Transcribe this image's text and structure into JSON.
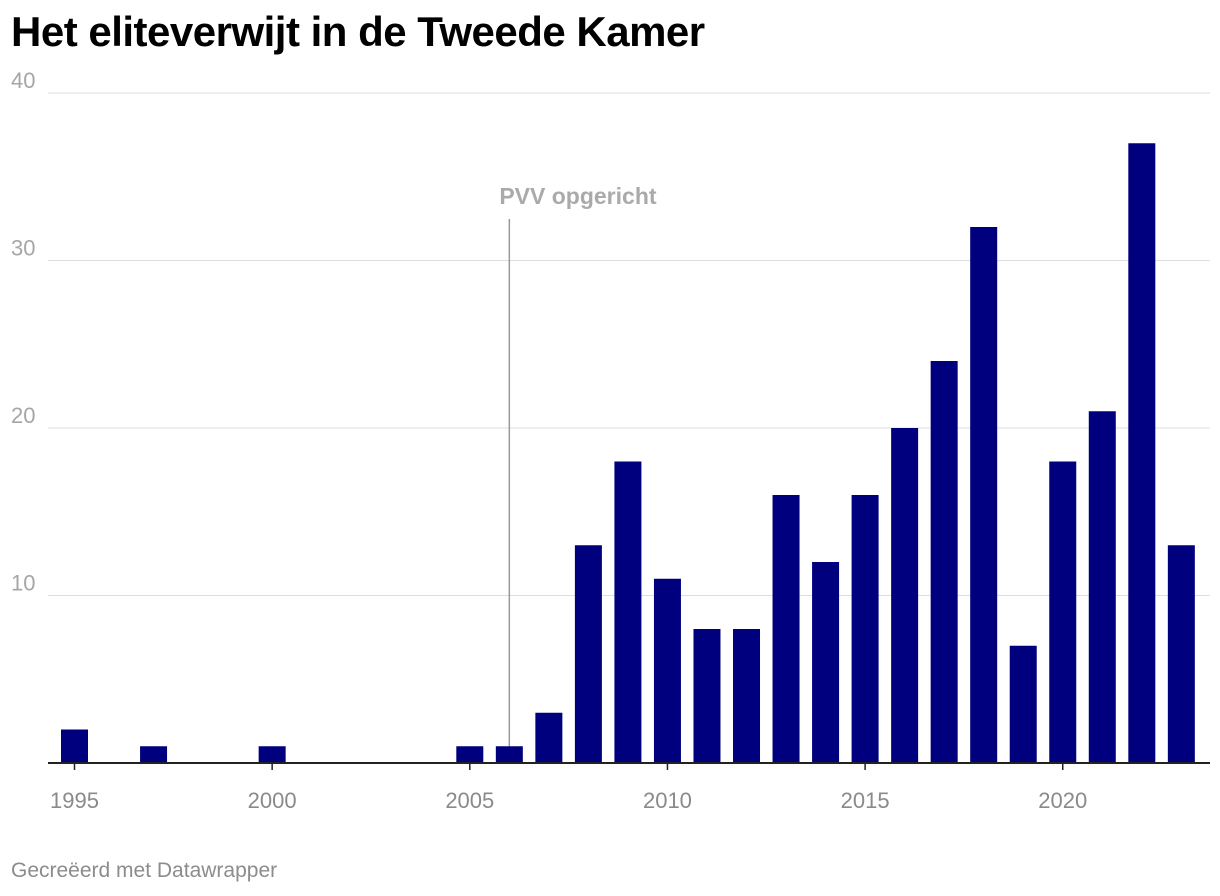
{
  "chart_data": {
    "type": "bar",
    "title": "Het eliteverwijt in de Tweede Kamer",
    "x": [
      1995,
      1996,
      1997,
      1998,
      1999,
      2000,
      2001,
      2002,
      2003,
      2004,
      2005,
      2006,
      2007,
      2008,
      2009,
      2010,
      2011,
      2012,
      2013,
      2014,
      2015,
      2016,
      2017,
      2018,
      2019,
      2020,
      2021,
      2022,
      2023
    ],
    "values": [
      2,
      0,
      1,
      0,
      0,
      1,
      0,
      0,
      0,
      0,
      1,
      1,
      3,
      13,
      18,
      11,
      8,
      8,
      16,
      12,
      16,
      20,
      24,
      32,
      7,
      18,
      21,
      37,
      13
    ],
    "ylim": [
      0,
      40
    ],
    "yticks": [
      10,
      20,
      30,
      40
    ],
    "xticks": [
      1995,
      2000,
      2005,
      2010,
      2015,
      2020
    ],
    "grid": true,
    "bar_color": "#00007f",
    "annotation": {
      "x": 2006,
      "label": "PVV opgericht"
    }
  },
  "footer": {
    "credit": "Gecreëerd met Datawrapper"
  }
}
